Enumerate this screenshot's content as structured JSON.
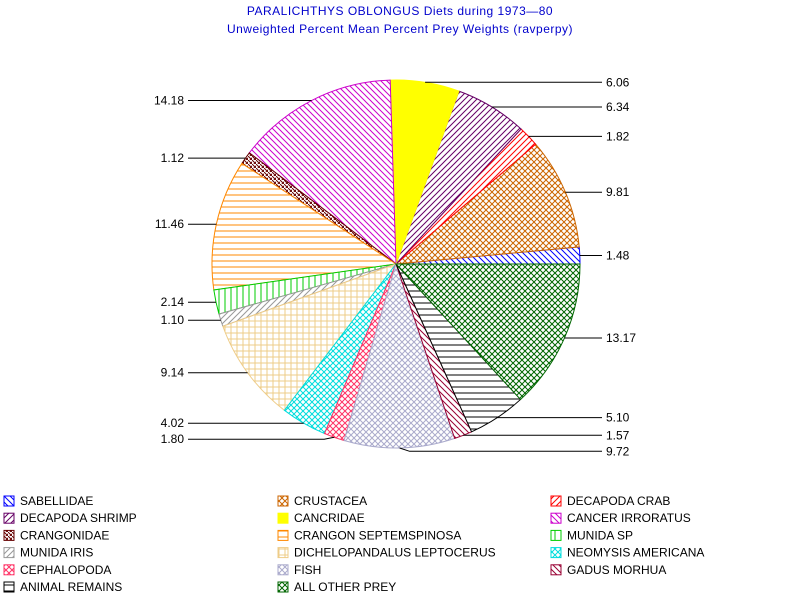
{
  "chart_data": {
    "type": "pie",
    "title": "PARALICHTHYS OBLONGUS Diets during 1973—80",
    "subtitle": "Unweighted Percent Mean Percent Prey  Weights (ravperpy)",
    "slices": [
      {
        "name": "SABELLIDAE",
        "value": 1.48,
        "label": "1.48",
        "color": "#0000ff",
        "pattern": "diag-down"
      },
      {
        "name": "CRUSTACEA",
        "value": 9.81,
        "label": "9.81",
        "color": "#cc6600",
        "pattern": "cross"
      },
      {
        "name": "DECAPODA CRAB",
        "value": 1.82,
        "label": "1.82",
        "color": "#ff0000",
        "pattern": "diag-up"
      },
      {
        "name": "DECAPODA SHRIMP",
        "value": 6.34,
        "label": "6.34",
        "color": "#660066",
        "pattern": "diag-up"
      },
      {
        "name": "CANCRIDAE",
        "value": 6.06,
        "label": "6.06",
        "color": "#ffff00",
        "pattern": "solid"
      },
      {
        "name": "CANCER IRRORATUS",
        "value": 14.18,
        "label": "14.18",
        "color": "#cc00cc",
        "pattern": "diag-down"
      },
      {
        "name": "CRANGONIDAE",
        "value": 1.12,
        "label": "1.12",
        "color": "#660000",
        "pattern": "cross-dense"
      },
      {
        "name": "CRANGON SEPTEMSPINOSA",
        "value": 11.46,
        "label": "11.46",
        "color": "#ff8800",
        "pattern": "horizontal"
      },
      {
        "name": "MUNIDA SP",
        "value": 2.14,
        "label": "2.14",
        "color": "#00cc00",
        "pattern": "vertical"
      },
      {
        "name": "MUNIDA IRIS",
        "value": 1.1,
        "label": "1.10",
        "color": "#999999",
        "pattern": "diag-up"
      },
      {
        "name": "DICHELOPANDALUS LEPTOCERUS",
        "value": 9.14,
        "label": "9.14",
        "color": "#eecc88",
        "pattern": "grid"
      },
      {
        "name": "NEOMYSIS AMERICANA",
        "value": 4.02,
        "label": "4.02",
        "color": "#00dddd",
        "pattern": "cross"
      },
      {
        "name": "CEPHALOPODA",
        "value": 1.8,
        "label": "1.80",
        "color": "#ff3366",
        "pattern": "cross"
      },
      {
        "name": "FISH",
        "value": 9.72,
        "label": "9.72",
        "color": "#aaaacc",
        "pattern": "cross"
      },
      {
        "name": "GADUS MORHUA",
        "value": 1.57,
        "label": "1.57",
        "color": "#990033",
        "pattern": "diag-down"
      },
      {
        "name": "ANIMAL REMAINS",
        "value": 5.1,
        "label": "5.10",
        "color": "#000000",
        "pattern": "horizontal"
      },
      {
        "name": "ALL OTHER PREY",
        "value": 13.17,
        "label": "13.17",
        "color": "#006600",
        "pattern": "cross"
      }
    ],
    "legend": {
      "position": "bottom",
      "columns": 3,
      "items": [
        "SABELLIDAE",
        "CRUSTACEA",
        "DECAPODA CRAB",
        "DECAPODA SHRIMP",
        "CANCRIDAE",
        "CANCER IRRORATUS",
        "CRANGONIDAE",
        "CRANGON SEPTEMSPINOSA",
        "MUNIDA SP",
        "MUNIDA IRIS",
        "DICHELOPANDALUS LEPTOCERUS",
        "NEOMYSIS AMERICANA",
        "CEPHALOPODA",
        "FISH",
        "GADUS MORHUA",
        "ANIMAL REMAINS",
        "ALL OTHER PREY"
      ]
    }
  }
}
